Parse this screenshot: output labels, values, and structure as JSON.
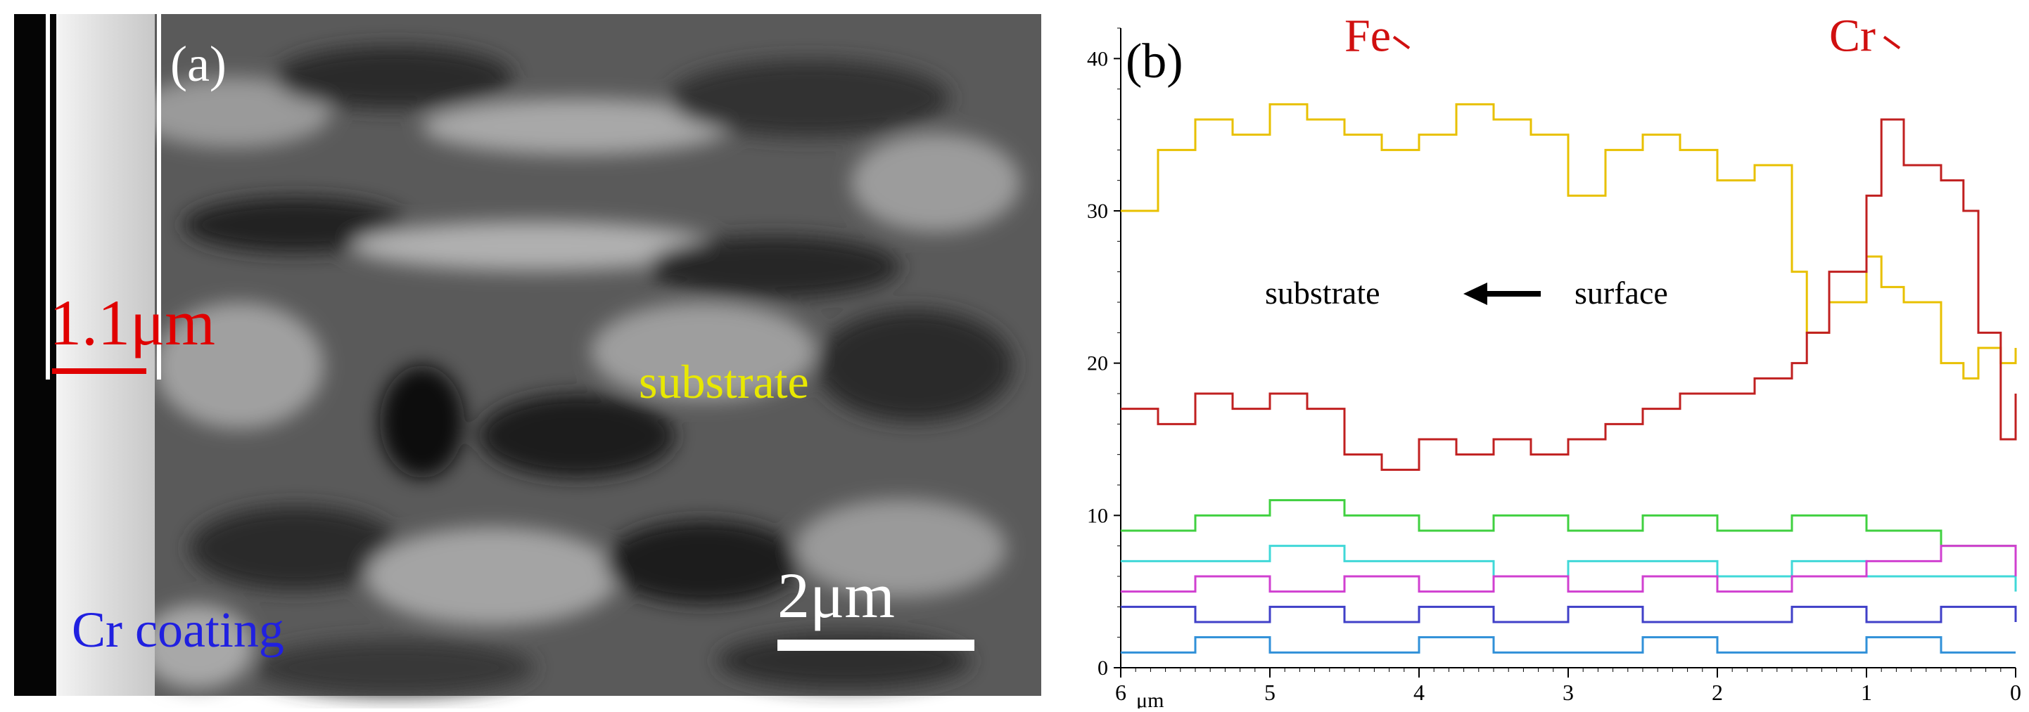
{
  "panel_a": {
    "label": "(a)",
    "thickness_label": "1.1μm",
    "substrate_label": "substrate",
    "coating_label": "Cr coating",
    "scale_bar_label": "2μm",
    "colors": {
      "thickness": "#e00000",
      "substrate": "#e8e800",
      "coating": "#2020e0",
      "scale": "#ffffff"
    }
  },
  "panel_b": {
    "label": "(b)"
  },
  "chart_data": {
    "type": "line",
    "title": "",
    "xlabel": "μm",
    "ylabel": "",
    "xlim": [
      6,
      0
    ],
    "ylim": [
      0,
      42
    ],
    "x_ticks": [
      "6",
      "5",
      "4",
      "3",
      "2",
      "1",
      "0"
    ],
    "y_ticks": [
      "0",
      "10",
      "20",
      "30",
      "40"
    ],
    "grid": false,
    "annotation_substrate": "substrate",
    "annotation_surface": "surface",
    "series": [
      {
        "name": "Fe",
        "color": "#e8c000",
        "x": [
          6.0,
          5.75,
          5.5,
          5.25,
          5.0,
          4.75,
          4.5,
          4.25,
          4.0,
          3.75,
          3.5,
          3.25,
          3.0,
          2.75,
          2.5,
          2.25,
          2.0,
          1.75,
          1.5,
          1.4,
          1.25,
          1.0,
          0.9,
          0.75,
          0.5,
          0.35,
          0.25,
          0.1,
          0.0
        ],
        "y": [
          30,
          34,
          36,
          35,
          37,
          36,
          35,
          34,
          35,
          37,
          36,
          35,
          31,
          34,
          35,
          34,
          32,
          33,
          26,
          22,
          24,
          27,
          25,
          24,
          20,
          19,
          21,
          20,
          21
        ]
      },
      {
        "name": "Cr",
        "color": "#c02020",
        "x": [
          6.0,
          5.75,
          5.5,
          5.25,
          5.0,
          4.75,
          4.5,
          4.25,
          4.0,
          3.75,
          3.5,
          3.25,
          3.0,
          2.75,
          2.5,
          2.25,
          2.0,
          1.75,
          1.5,
          1.4,
          1.25,
          1.0,
          0.9,
          0.75,
          0.5,
          0.35,
          0.25,
          0.1,
          0.0
        ],
        "y": [
          17,
          16,
          18,
          17,
          18,
          17,
          14,
          13,
          15,
          14,
          15,
          14,
          15,
          16,
          17,
          18,
          18,
          19,
          20,
          22,
          26,
          31,
          36,
          33,
          32,
          30,
          22,
          15,
          18
        ]
      },
      {
        "name": "",
        "color": "#40d040",
        "x": [
          6.0,
          5.5,
          5.0,
          4.5,
          4.0,
          3.5,
          3.0,
          2.5,
          2.0,
          1.5,
          1.0,
          0.5,
          0.0
        ],
        "y": [
          9,
          10,
          11,
          10,
          9,
          10,
          9,
          10,
          9,
          10,
          9,
          8,
          7
        ]
      },
      {
        "name": "",
        "color": "#40d8d8",
        "x": [
          6.0,
          5.5,
          5.0,
          4.5,
          4.0,
          3.5,
          3.0,
          2.5,
          2.0,
          1.5,
          1.0,
          0.5,
          0.0
        ],
        "y": [
          7,
          7,
          8,
          7,
          7,
          6,
          7,
          7,
          6,
          7,
          6,
          6,
          5
        ]
      },
      {
        "name": "",
        "color": "#d040d0",
        "x": [
          6.0,
          5.5,
          5.0,
          4.5,
          4.0,
          3.5,
          3.0,
          2.5,
          2.0,
          1.5,
          1.0,
          0.5,
          0.0
        ],
        "y": [
          5,
          6,
          5,
          6,
          5,
          6,
          5,
          6,
          5,
          6,
          7,
          8,
          6
        ]
      },
      {
        "name": "",
        "color": "#4040c8",
        "x": [
          6.0,
          5.5,
          5.0,
          4.5,
          4.0,
          3.5,
          3.0,
          2.5,
          2.0,
          1.5,
          1.0,
          0.5,
          0.0
        ],
        "y": [
          4,
          3,
          4,
          3,
          4,
          3,
          4,
          3,
          3,
          4,
          3,
          4,
          3
        ]
      },
      {
        "name": "",
        "color": "#3090d8",
        "x": [
          6.0,
          5.5,
          5.0,
          4.5,
          4.0,
          3.5,
          3.0,
          2.5,
          2.0,
          1.5,
          1.0,
          0.5,
          0.0
        ],
        "y": [
          1,
          2,
          1,
          1,
          2,
          1,
          1,
          2,
          1,
          1,
          2,
          1,
          1
        ]
      }
    ]
  }
}
